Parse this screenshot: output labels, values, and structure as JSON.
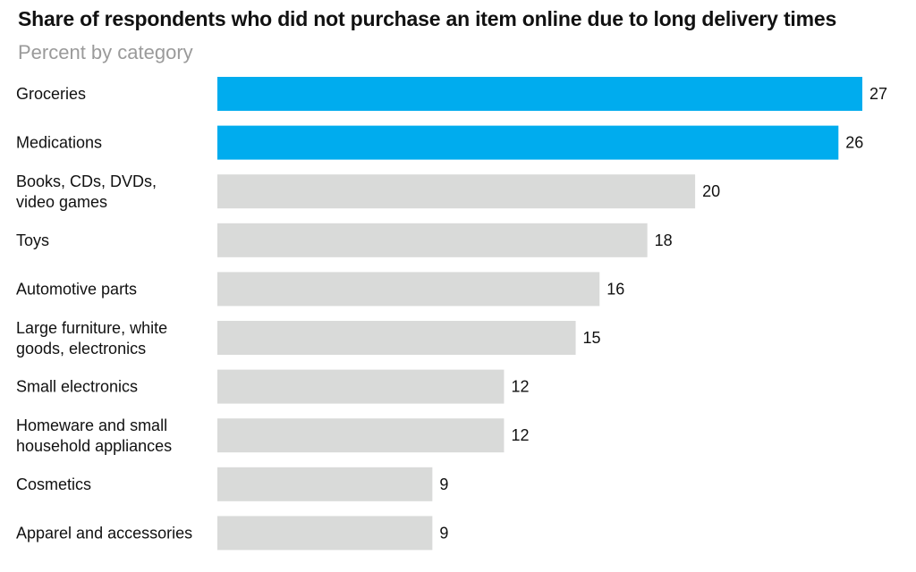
{
  "chart_data": {
    "type": "bar",
    "orientation": "horizontal",
    "title": "Share of respondents who did not purchase an item online due to long delivery times",
    "subtitle": "Percent by category",
    "categories": [
      [
        "Groceries"
      ],
      [
        "Medications"
      ],
      [
        "Books, CDs, DVDs,",
        "video games"
      ],
      [
        "Toys"
      ],
      [
        "Automotive parts"
      ],
      [
        "Large furniture, white",
        "goods, electronics"
      ],
      [
        "Small electronics"
      ],
      [
        "Homeware and small",
        "household appliances"
      ],
      [
        "Cosmetics"
      ],
      [
        "Apparel and accessories"
      ]
    ],
    "values": [
      27,
      26,
      20,
      18,
      16,
      15,
      12,
      12,
      9,
      9
    ],
    "highlighted": [
      true,
      true,
      false,
      false,
      false,
      false,
      false,
      false,
      false,
      false
    ],
    "colors": {
      "highlight": "#00acee",
      "default": "#d9dad9"
    },
    "xlim": [
      0,
      27
    ],
    "grid": false,
    "legend": "none"
  }
}
